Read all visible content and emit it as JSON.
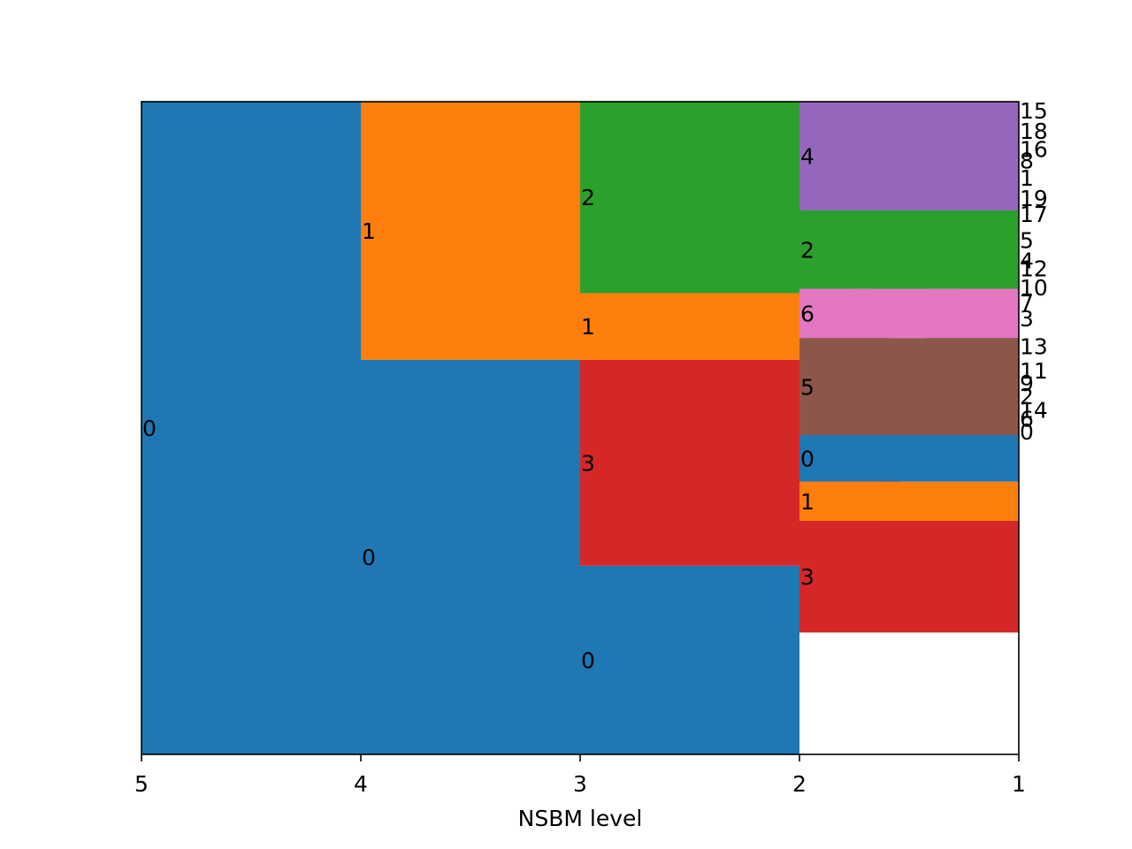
{
  "chart_data": {
    "type": "sankey",
    "xlabel": "NSBM level",
    "x_ticks": [
      "5",
      "4",
      "3",
      "2",
      "1"
    ],
    "colors": {
      "0": "#1f77b4",
      "1": "#ff7f0e",
      "2": "#2ca02c",
      "3": "#d62728",
      "4": "#9467bd",
      "5": "#8c564b",
      "6": "#e377c2"
    },
    "levels": [
      {
        "level": "5",
        "groups": [
          {
            "label": "0",
            "parent": null,
            "size": 45
          }
        ]
      },
      {
        "level": "4",
        "groups": [
          {
            "label": "1",
            "parent": "0",
            "size": 17.8
          },
          {
            "label": "0",
            "parent": "0",
            "size": 27.2
          }
        ]
      },
      {
        "level": "3",
        "groups": [
          {
            "label": "2",
            "parent": "1",
            "size": 13.2
          },
          {
            "label": "1",
            "parent": "1",
            "size": 4.6
          },
          {
            "label": "3",
            "parent": "0",
            "size": 14.2
          },
          {
            "label": "0",
            "parent": "0",
            "size": 13.0
          }
        ]
      },
      {
        "level": "2",
        "groups": [
          {
            "label": "4",
            "parent": "3",
            "size": 7.5
          },
          {
            "label": "2",
            "parent": "2",
            "size": 5.4
          },
          {
            "label": "6",
            "parent": "3",
            "size": 3.4
          },
          {
            "label": "5",
            "parent": "3",
            "size": 6.7
          },
          {
            "label": "0",
            "parent": "2",
            "size": 3.2
          },
          {
            "label": "1",
            "parent": "1",
            "size": 2.7
          },
          {
            "label": "3",
            "parent": "0",
            "size": 7.7
          }
        ]
      },
      {
        "level": "1",
        "groups": [
          {
            "label": "15",
            "parent": "6",
            "size": 1.2
          },
          {
            "label": "18",
            "parent": "5",
            "size": 1.6
          },
          {
            "label": "16",
            "parent": "5",
            "size": 0.9
          },
          {
            "label": "8",
            "parent": "5",
            "size": 0.7
          },
          {
            "label": "1",
            "parent": "5",
            "size": 1.7
          },
          {
            "label": "19",
            "parent": "4",
            "size": 1.1
          },
          {
            "label": "17",
            "parent": "4",
            "size": 1.1
          },
          {
            "label": "5",
            "parent": "4",
            "size": 2.5
          },
          {
            "label": "4",
            "parent": "4",
            "size": 0.3
          },
          {
            "label": "12",
            "parent": "3",
            "size": 0.8
          },
          {
            "label": "10",
            "parent": "3",
            "size": 1.8
          },
          {
            "label": "7",
            "parent": "3",
            "size": 0.3
          },
          {
            "label": "3",
            "parent": "3",
            "size": 1.9
          },
          {
            "label": "13",
            "parent": "2",
            "size": 1.9
          },
          {
            "label": "11",
            "parent": "2",
            "size": 1.5
          },
          {
            "label": "9",
            "parent": "1",
            "size": 0.2
          },
          {
            "label": "2",
            "parent": "1",
            "size": 1.6
          },
          {
            "label": "14",
            "parent": "0",
            "size": 0.3
          },
          {
            "label": "6",
            "parent": "0",
            "size": 0.9
          },
          {
            "label": "0",
            "parent": "0",
            "size": 0.9
          }
        ]
      }
    ]
  }
}
